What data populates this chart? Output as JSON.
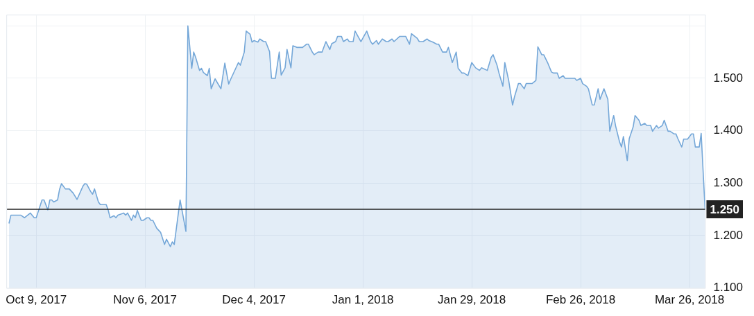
{
  "chart_data": {
    "type": "area",
    "color": "#74a7d8",
    "grid": true,
    "legend": false,
    "x": [
      "2017-10-02",
      "2017-10-02T12:00",
      "2017-10-05",
      "2017-10-06",
      "2017-10-07T12:00",
      "2017-10-08T12:00",
      "2017-10-09",
      "2017-10-10T12:00",
      "2017-10-11",
      "2017-10-12",
      "2017-10-12T12:00",
      "2017-10-13",
      "2017-10-13T12:00",
      "2017-10-14T12:00",
      "2017-10-15",
      "2017-10-15T12:00",
      "2017-10-16T12:00",
      "2017-10-17T12:00",
      "2017-10-18T12:00",
      "2017-10-19T12:00",
      "2017-10-21",
      "2017-10-21T12:00",
      "2017-10-22",
      "2017-10-23",
      "2017-10-23T12:00",
      "2017-10-24",
      "2017-10-25",
      "2017-10-25T12:00",
      "2017-10-27",
      "2017-10-27T12:00",
      "2017-10-28",
      "2017-10-29",
      "2017-10-29T12:00",
      "2017-10-30",
      "2017-10-31T12:00",
      "2017-11-01",
      "2017-11-01T12:00",
      "2017-11-02T12:00",
      "2017-11-03",
      "2017-11-03T12:00",
      "2017-11-04",
      "2017-11-05",
      "2017-11-05T12:00",
      "2017-11-06T12:00",
      "2017-11-07",
      "2017-11-07T12:00",
      "2017-11-08",
      "2017-11-09",
      "2017-11-10",
      "2017-11-11",
      "2017-11-11T12:00",
      "2017-11-12T12:00",
      "2017-11-13",
      "2017-11-13T12:00",
      "2017-11-15",
      "2017-11-16T12:00",
      "2017-11-17",
      "2017-11-18",
      "2017-11-18T12:00",
      "2017-11-19",
      "2017-11-20",
      "2017-11-20T12:00",
      "2017-11-21",
      "2017-11-22",
      "2017-11-22T12:00",
      "2017-11-23",
      "2017-11-24",
      "2017-11-25T12:00",
      "2017-11-26T12:00",
      "2017-11-27T12:00",
      "2017-11-28",
      "2017-11-30",
      "2017-11-30T12:00",
      "2017-12-01T12:00",
      "2017-12-02",
      "2017-12-03",
      "2017-12-03T12:00",
      "2017-12-04",
      "2017-12-05",
      "2017-12-05T12:00",
      "2017-12-06T12:00",
      "2017-12-07",
      "2017-12-08",
      "2017-12-08T12:00",
      "2017-12-09T12:00",
      "2017-12-10T12:00",
      "2017-12-11",
      "2017-12-12",
      "2017-12-12T12:00",
      "2017-12-13T12:00",
      "2017-12-14",
      "2017-12-15",
      "2017-12-16T12:00",
      "2017-12-17T12:00",
      "2017-12-18",
      "2017-12-19",
      "2017-12-19T12:00",
      "2017-12-20T12:00",
      "2017-12-21T12:00",
      "2017-12-22T12:00",
      "2017-12-23T12:00",
      "2017-12-24",
      "2017-12-25",
      "2017-12-25T12:00",
      "2017-12-26T12:00",
      "2017-12-27",
      "2017-12-28",
      "2017-12-28T12:00",
      "2017-12-29T12:00",
      "2017-12-30",
      "2017-12-31T12:00",
      "2018-01-02",
      "2018-01-03",
      "2018-01-03T12:00",
      "2018-01-04T12:00",
      "2018-01-05",
      "2018-01-06",
      "2018-01-07",
      "2018-01-07T12:00",
      "2018-01-08T12:00",
      "2018-01-09",
      "2018-01-10T12:00",
      "2018-01-12",
      "2018-01-13",
      "2018-01-13T12:00",
      "2018-01-15",
      "2018-01-15T12:00",
      "2018-01-16T12:00",
      "2018-01-17T12:00",
      "2018-01-18",
      "2018-01-19",
      "2018-01-20",
      "2018-01-20T12:00",
      "2018-01-21T12:00",
      "2018-01-22T12:00",
      "2018-01-23",
      "2018-01-24",
      "2018-01-25",
      "2018-01-25T12:00",
      "2018-01-26T12:00",
      "2018-01-27",
      "2018-01-28",
      "2018-01-29",
      "2018-01-30",
      "2018-01-31",
      "2018-01-31T12:00",
      "2018-02-02",
      "2018-02-03",
      "2018-02-03T12:00",
      "2018-02-04T12:00",
      "2018-02-05",
      "2018-02-06",
      "2018-02-06T12:00",
      "2018-02-07T12:00",
      "2018-02-08T12:00",
      "2018-02-09",
      "2018-02-10",
      "2018-02-10T12:00",
      "2018-02-11T12:00",
      "2018-02-12",
      "2018-02-13T12:00",
      "2018-02-14T12:00",
      "2018-02-15",
      "2018-02-16",
      "2018-02-16T12:00",
      "2018-02-17T12:00",
      "2018-02-18T12:00",
      "2018-02-19",
      "2018-02-20",
      "2018-02-20T12:00",
      "2018-02-21T12:00",
      "2018-02-22",
      "2018-02-24T12:00",
      "2018-02-25",
      "2018-02-26",
      "2018-02-26T12:00",
      "2018-02-27T12:00",
      "2018-02-28",
      "2018-03-01",
      "2018-03-01T12:00",
      "2018-03-02T12:00",
      "2018-03-03",
      "2018-03-04",
      "2018-03-05",
      "2018-03-05T12:00",
      "2018-03-06T12:00",
      "2018-03-07",
      "2018-03-08",
      "2018-03-08T12:00",
      "2018-03-09",
      "2018-03-10",
      "2018-03-10T12:00",
      "2018-03-11T12:00",
      "2018-03-12",
      "2018-03-13",
      "2018-03-13T12:00",
      "2018-03-14T12:00",
      "2018-03-15",
      "2018-03-16",
      "2018-03-16T12:00",
      "2018-03-17T12:00",
      "2018-03-18",
      "2018-03-19",
      "2018-03-19T12:00",
      "2018-03-20T12:00",
      "2018-03-21",
      "2018-03-22",
      "2018-03-22T12:00",
      "2018-03-23",
      "2018-03-24",
      "2018-03-24T12:00",
      "2018-03-25T12:00",
      "2018-03-26T12:00",
      "2018-03-27",
      "2018-03-27T12:00",
      "2018-03-28T12:00",
      "2018-03-29",
      "2018-03-30"
    ],
    "values": [
      1.223,
      1.239,
      1.239,
      1.234,
      1.243,
      1.234,
      1.234,
      1.268,
      1.268,
      1.249,
      1.268,
      1.268,
      1.264,
      1.268,
      1.288,
      1.299,
      1.289,
      1.289,
      1.281,
      1.269,
      1.294,
      1.299,
      1.298,
      1.284,
      1.279,
      1.289,
      1.264,
      1.259,
      1.259,
      1.249,
      1.234,
      1.238,
      1.234,
      1.239,
      1.243,
      1.239,
      1.243,
      1.229,
      1.239,
      1.234,
      1.248,
      1.229,
      1.229,
      1.234,
      1.234,
      1.229,
      1.229,
      1.214,
      1.206,
      1.183,
      1.193,
      1.179,
      1.188,
      1.183,
      1.268,
      1.208,
      1.6,
      1.519,
      1.55,
      1.54,
      1.515,
      1.519,
      1.511,
      1.505,
      1.519,
      1.48,
      1.499,
      1.48,
      1.529,
      1.489,
      1.498,
      1.53,
      1.525,
      1.55,
      1.59,
      1.584,
      1.569,
      1.572,
      1.569,
      1.575,
      1.57,
      1.57,
      1.551,
      1.5,
      1.5,
      1.55,
      1.506,
      1.52,
      1.555,
      1.52,
      1.562,
      1.559,
      1.559,
      1.565,
      1.565,
      1.55,
      1.545,
      1.55,
      1.55,
      1.57,
      1.555,
      1.566,
      1.57,
      1.58,
      1.58,
      1.57,
      1.575,
      1.57,
      1.57,
      1.59,
      1.57,
      1.59,
      1.57,
      1.565,
      1.572,
      1.565,
      1.575,
      1.57,
      1.57,
      1.575,
      1.57,
      1.58,
      1.58,
      1.565,
      1.585,
      1.576,
      1.57,
      1.57,
      1.575,
      1.572,
      1.569,
      1.565,
      1.565,
      1.55,
      1.55,
      1.559,
      1.53,
      1.55,
      1.519,
      1.51,
      1.51,
      1.505,
      1.53,
      1.52,
      1.515,
      1.52,
      1.515,
      1.54,
      1.545,
      1.525,
      1.51,
      1.485,
      1.53,
      1.496,
      1.449,
      1.465,
      1.49,
      1.49,
      1.48,
      1.49,
      1.49,
      1.496,
      1.56,
      1.545,
      1.545,
      1.53,
      1.512,
      1.51,
      1.51,
      1.5,
      1.505,
      1.5,
      1.5,
      1.496,
      1.5,
      1.49,
      1.485,
      1.48,
      1.449,
      1.449,
      1.48,
      1.46,
      1.48,
      1.46,
      1.399,
      1.429,
      1.409,
      1.379,
      1.369,
      1.389,
      1.343,
      1.385,
      1.407,
      1.429,
      1.42,
      1.41,
      1.414,
      1.41,
      1.41,
      1.399,
      1.41,
      1.405,
      1.41,
      1.42,
      1.399,
      1.399,
      1.394,
      1.394,
      1.385,
      1.369,
      1.384,
      1.384,
      1.394,
      1.394,
      1.369,
      1.369,
      1.395,
      1.25
    ],
    "xlim": [
      "2017-10-01T12:00",
      "2018-03-30"
    ],
    "xticks": [
      {
        "value": "2017-10-09",
        "label": "Oct 9, 2017"
      },
      {
        "value": "2017-11-06",
        "label": "Nov 6, 2017"
      },
      {
        "value": "2017-12-04",
        "label": "Dec 4, 2017"
      },
      {
        "value": "2018-01-01",
        "label": "Jan 1, 2018"
      },
      {
        "value": "2018-01-29",
        "label": "Jan 29, 2018"
      },
      {
        "value": "2018-02-26",
        "label": "Feb 26, 2018"
      },
      {
        "value": "2018-03-26",
        "label": "Mar 26, 2018"
      }
    ],
    "ylim": [
      1.1,
      1.62
    ],
    "yticks": [
      {
        "value": 1.1,
        "label": "1.100"
      },
      {
        "value": 1.2,
        "label": "1.200"
      },
      {
        "value": 1.3,
        "label": "1.300"
      },
      {
        "value": 1.4,
        "label": "1.400"
      },
      {
        "value": 1.5,
        "label": "1.500"
      },
      {
        "value": 1.6,
        "label": null
      }
    ],
    "ref_lines": [
      {
        "axis": "y",
        "value": 1.25,
        "label": "1.250",
        "color": "#222222"
      }
    ]
  }
}
